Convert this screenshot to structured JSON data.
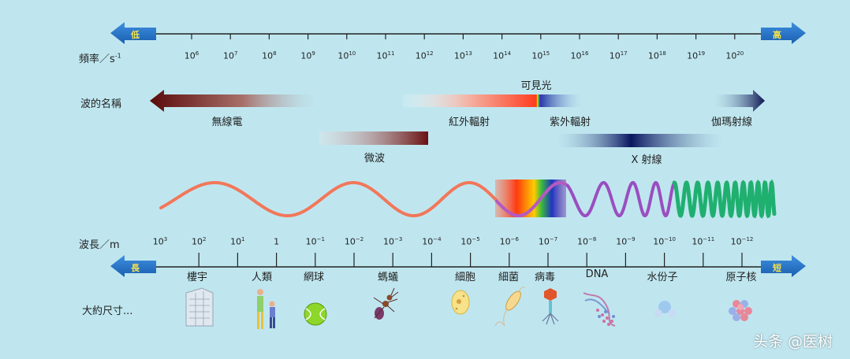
{
  "frequency": {
    "axis_label": "頻率／s",
    "axis_sup": "-1",
    "arrow_left": "低",
    "arrow_right": "高",
    "ticks": [
      {
        "base": "10",
        "exp": "6"
      },
      {
        "base": "10",
        "exp": "7"
      },
      {
        "base": "10",
        "exp": "8"
      },
      {
        "base": "10",
        "exp": "9"
      },
      {
        "base": "10",
        "exp": "10"
      },
      {
        "base": "10",
        "exp": "11"
      },
      {
        "base": "10",
        "exp": "12"
      },
      {
        "base": "10",
        "exp": "13"
      },
      {
        "base": "10",
        "exp": "14"
      },
      {
        "base": "10",
        "exp": "15"
      },
      {
        "base": "10",
        "exp": "16"
      },
      {
        "base": "10",
        "exp": "17"
      },
      {
        "base": "10",
        "exp": "18"
      },
      {
        "base": "10",
        "exp": "19"
      },
      {
        "base": "10",
        "exp": "20"
      }
    ]
  },
  "waves": {
    "section_label": "波的名稱",
    "radio": "無線電",
    "infrared": "紅外輻射",
    "visible": "可見光",
    "ultraviolet": "紫外輻射",
    "gamma": "伽瑪射線",
    "microwave": "微波",
    "xray": "X 射線"
  },
  "wavelength": {
    "axis_label": "波長／m",
    "arrow_left": "長",
    "arrow_right": "短",
    "ticks": [
      {
        "base": "10",
        "exp": "3"
      },
      {
        "base": "10",
        "exp": "2"
      },
      {
        "base": "10",
        "exp": "1"
      },
      {
        "base": "1",
        "exp": ""
      },
      {
        "base": "10",
        "exp": "−1"
      },
      {
        "base": "10",
        "exp": "−2"
      },
      {
        "base": "10",
        "exp": "−3"
      },
      {
        "base": "10",
        "exp": "−4"
      },
      {
        "base": "10",
        "exp": "−5"
      },
      {
        "base": "10",
        "exp": "−6"
      },
      {
        "base": "10",
        "exp": "−7"
      },
      {
        "base": "10",
        "exp": "−8"
      },
      {
        "base": "10",
        "exp": "−9"
      },
      {
        "base": "10",
        "exp": "−10"
      },
      {
        "base": "10",
        "exp": "−11"
      },
      {
        "base": "10",
        "exp": "−12"
      }
    ]
  },
  "sizes": {
    "section_label": "大約尺寸...",
    "objects": [
      "樓宇",
      "人類",
      "網球",
      "螞蟻",
      "細胞",
      "細菌",
      "病毒",
      "DNA",
      "水份子",
      "原子核"
    ]
  },
  "watermark": "头条 @医树"
}
